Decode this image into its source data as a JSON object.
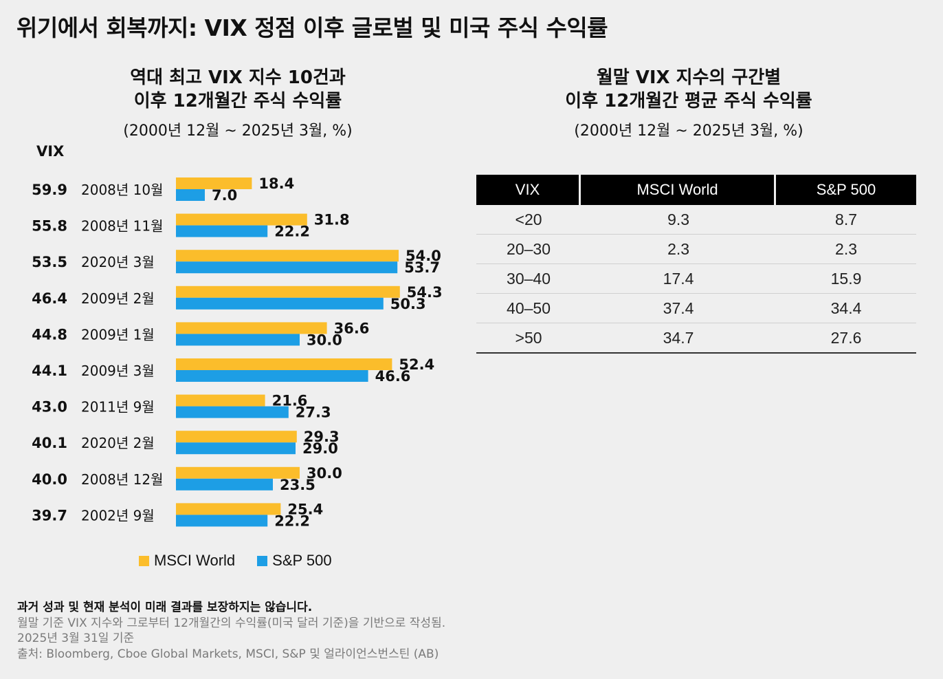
{
  "page": {
    "title": "위기에서 회복까지: VIX 정점 이후 글로벌 및 미국 주식 수익률"
  },
  "left_panel": {
    "title_line1": "역대 최고 VIX 지수 10건과",
    "title_line2": "이후 12개월간 주식 수익률",
    "subtitle": "(2000년 12월 ~ 2025년 3월, %)",
    "vix_header": "VIX"
  },
  "right_panel": {
    "title_line1": "월말 VIX 지수의 구간별",
    "title_line2": "이후 12개월간 평균 주식 수익률",
    "subtitle": "(2000년 12월 ~ 2025년 3월, %)",
    "table": {
      "headers": [
        "VIX",
        "MSCI World",
        "S&P 500"
      ],
      "rows": [
        [
          "<20",
          "9.3",
          "8.7"
        ],
        [
          "20–30",
          "2.3",
          "2.3"
        ],
        [
          "30–40",
          "17.4",
          "15.9"
        ],
        [
          "40–50",
          "37.4",
          "34.4"
        ],
        [
          ">50",
          "34.7",
          "27.6"
        ]
      ]
    }
  },
  "chart_data": [
    {
      "type": "bar",
      "orientation": "horizontal",
      "categories": [
        "2008년 10월",
        "2008년 11월",
        "2020년 3월",
        "2009년 2월",
        "2009년 1월",
        "2009년 3월",
        "2011년 9월",
        "2020년 2월",
        "2008년 12월",
        "2002년 9월"
      ],
      "vix": [
        "59.9",
        "55.8",
        "53.5",
        "46.4",
        "44.8",
        "44.1",
        "43.0",
        "40.1",
        "40.0",
        "39.7"
      ],
      "series": [
        {
          "name": "MSCI World",
          "color": "#fbbd2b",
          "values": [
            18.4,
            31.8,
            54.0,
            54.3,
            36.6,
            52.4,
            21.6,
            29.3,
            30.0,
            25.4
          ]
        },
        {
          "name": "S&P 500",
          "color": "#1d9ee5",
          "values": [
            7.0,
            22.2,
            53.7,
            50.3,
            30.0,
            46.6,
            27.3,
            29.0,
            23.5,
            22.2
          ]
        }
      ],
      "legend_position": "bottom",
      "grid": false
    },
    {
      "type": "table",
      "columns": [
        "VIX",
        "MSCI World",
        "S&P 500"
      ],
      "rows": [
        [
          "<20",
          9.3,
          8.7
        ],
        [
          "20–30",
          2.3,
          2.3
        ],
        [
          "30–40",
          17.4,
          15.9
        ],
        [
          "40–50",
          37.4,
          34.4
        ],
        [
          ">50",
          34.7,
          27.6
        ]
      ]
    }
  ],
  "legend": {
    "items": [
      {
        "label": "MSCI World",
        "color": "#fbbd2b"
      },
      {
        "label": "S&P 500",
        "color": "#1d9ee5"
      }
    ]
  },
  "footer": {
    "disclaimer": "과거 성과 및 현재 분석이 미래 결과를 보장하지는 않습니다.",
    "note1": "월말 기준 VIX 지수와 그로부터 12개월간의 수익률(미국 달러 기준)을 기반으로 작성됨.",
    "note2": "2025년 3월 31일 기준",
    "source": "출처: Bloomberg, Cboe Global Markets, MSCI, S&P 및 얼라이언스번스틴 (AB)"
  }
}
